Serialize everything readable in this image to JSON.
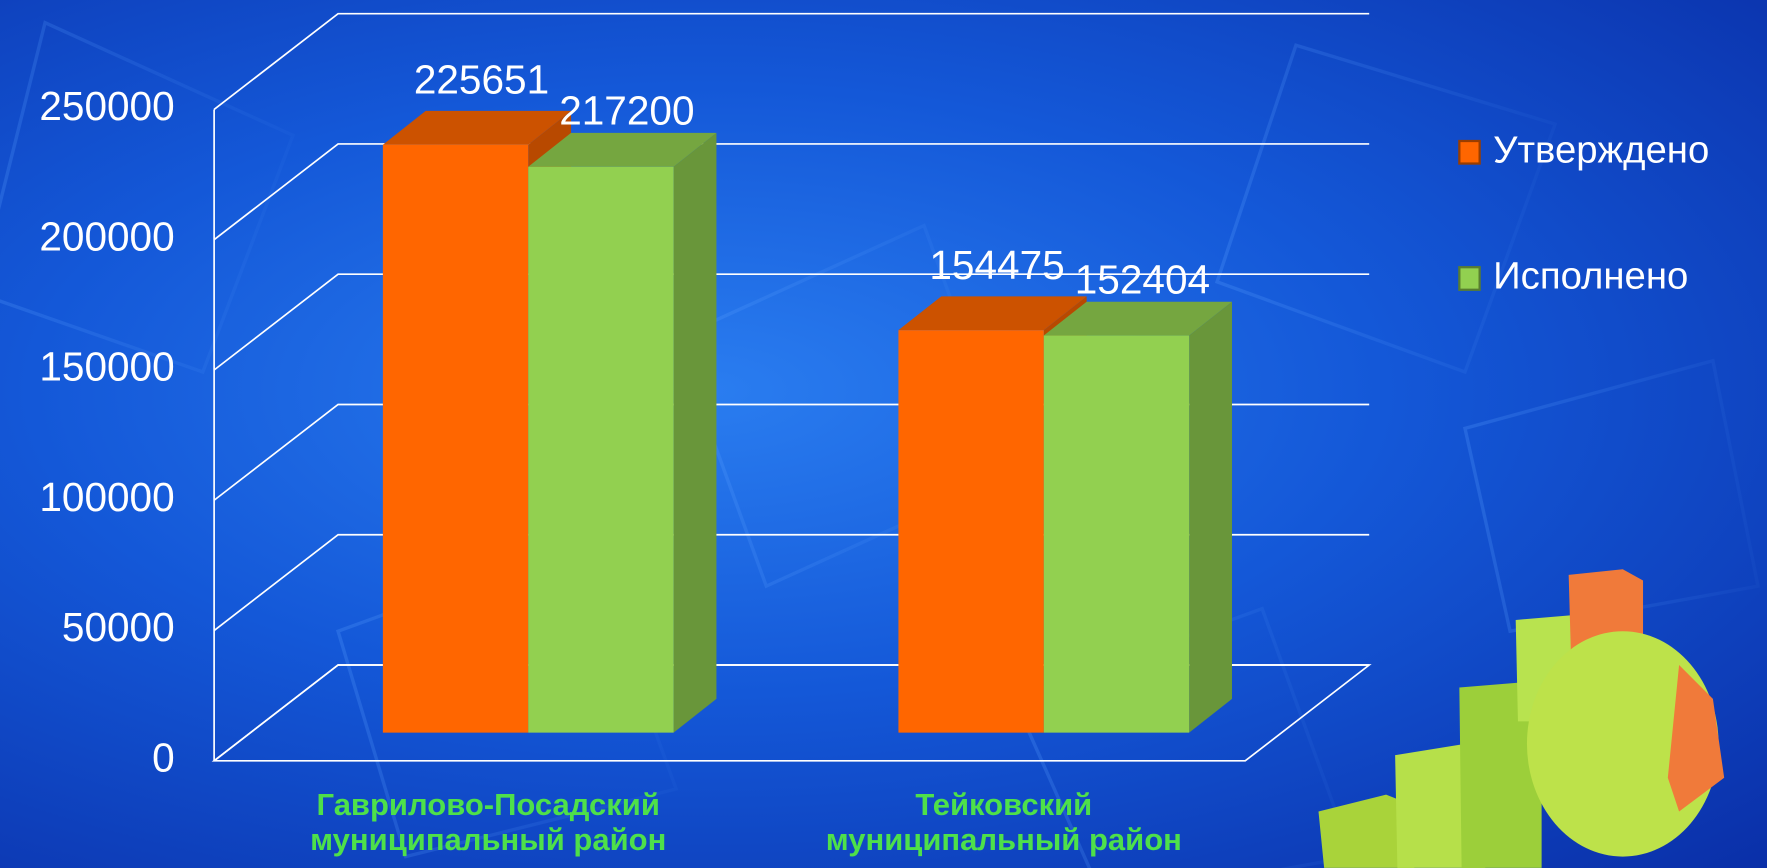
{
  "chart_data": {
    "type": "bar3d",
    "categories": [
      "Гаврилово-Посадский муниципальный район",
      "Тейковский муниципальный район"
    ],
    "series": [
      {
        "name": "Утверждено",
        "color": "#ff6600",
        "values": [
          225651,
          154475
        ]
      },
      {
        "name": "Исполнено",
        "color": "#92d050",
        "values": [
          217200,
          152404
        ]
      }
    ],
    "ylim": [
      0,
      250000
    ],
    "yticks": [
      0,
      50000,
      100000,
      150000,
      200000,
      250000
    ],
    "grid": true,
    "legend": "right"
  }
}
